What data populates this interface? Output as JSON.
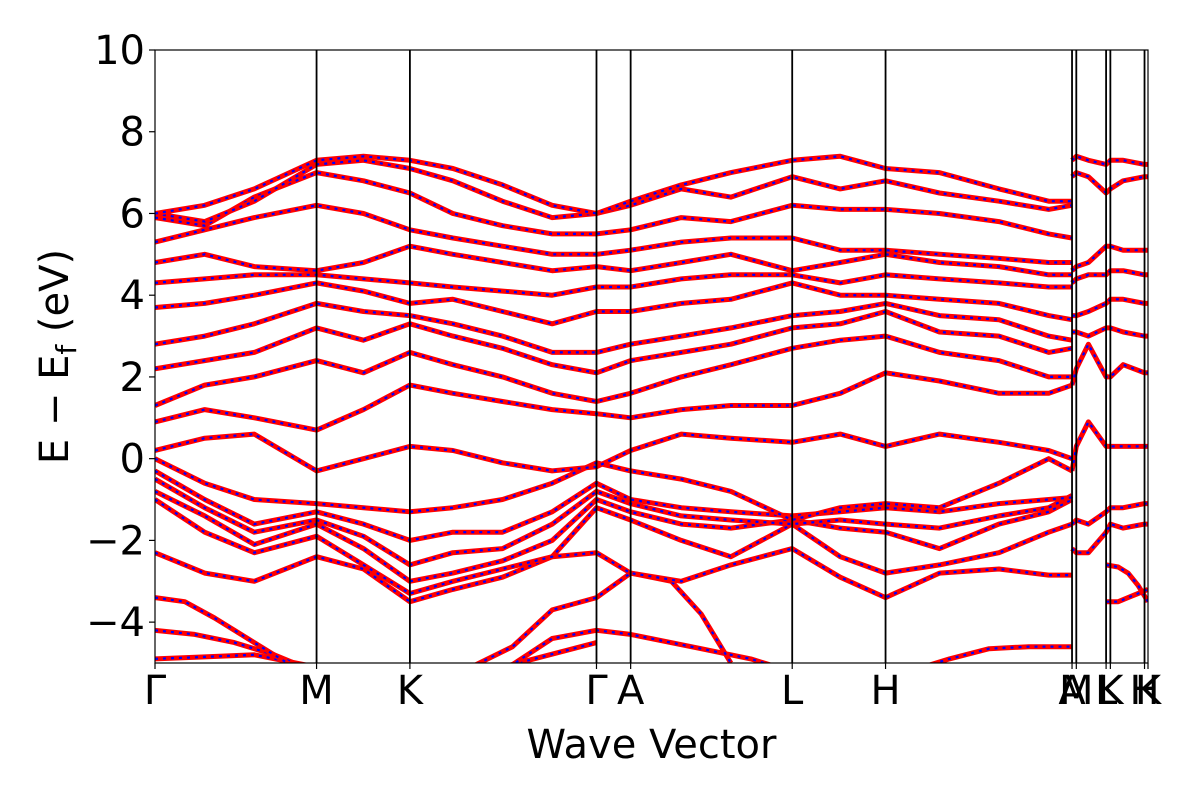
{
  "chart_data": {
    "type": "line",
    "title": "",
    "xlabel": "Wave Vector",
    "ylabel_main": "E − E",
    "ylabel_sub": "f",
    "ylabel_tail": " (eV)",
    "ylim": [
      -5,
      10
    ],
    "yticks": [
      -4,
      -2,
      0,
      2,
      4,
      6,
      8,
      10
    ],
    "ytick_labels": [
      "−4",
      "−2",
      "0",
      "2",
      "4",
      "6",
      "8",
      "10"
    ],
    "kpoints": [
      {
        "label": "Γ",
        "k": 0.0
      },
      {
        "label": "M",
        "k": 0.1627
      },
      {
        "label": "K",
        "k": 0.2567
      },
      {
        "label": "Γ",
        "k": 0.4446
      },
      {
        "label": "A",
        "k": 0.479
      },
      {
        "label": "L",
        "k": 0.6417
      },
      {
        "label": "H",
        "k": 0.7357
      },
      {
        "label": "A",
        "k": 0.9235
      },
      {
        "label": "M",
        "k": 0.9278
      },
      {
        "label": "L",
        "k": 0.9578
      },
      {
        "label": "K",
        "k": 0.9621
      },
      {
        "label": "H",
        "k": 0.9965
      },
      {
        "label": "K",
        "k": 1.0
      }
    ],
    "xlim": [
      0,
      1
    ],
    "colors": {
      "band_red": "#ff0000",
      "band_blue": "#0000ff",
      "axis": "#000000"
    },
    "band_style": "two overlaid series: solid red and dashed blue on identical paths",
    "series": [
      {
        "name": "",
        "color": "#ff0000",
        "style": "solid"
      },
      {
        "name": "",
        "color": "#0000ff",
        "style": "dashed"
      }
    ],
    "bands": [
      {
        "x": [
          0,
          0.05,
          0.1,
          0.1627,
          0.21,
          0.2567,
          0.3,
          0.35,
          0.4446
        ],
        "y": [
          -4.9,
          -4.85,
          -4.8,
          -5.1,
          -5.3,
          -5.4,
          -5.3,
          -5.1,
          -4.5
        ]
      },
      {
        "x": [
          0,
          0.04,
          0.08,
          0.12,
          0.16
        ],
        "y": [
          -4.2,
          -4.3,
          -4.5,
          -4.8,
          -5.2
        ]
      },
      {
        "x": [
          0,
          0.03,
          0.06,
          0.1,
          0.14
        ],
        "y": [
          -3.4,
          -3.5,
          -3.9,
          -4.5,
          -5.1
        ]
      },
      {
        "x": [
          0.35,
          0.4,
          0.4446,
          0.479,
          0.55,
          0.6,
          0.64
        ],
        "y": [
          -5.2,
          -4.4,
          -4.2,
          -4.3,
          -4.65,
          -4.9,
          -5.2
        ]
      },
      {
        "x": [
          0.31,
          0.36,
          0.4,
          0.4446,
          0.479,
          0.52,
          0.55,
          0.58
        ],
        "y": [
          -5.2,
          -4.6,
          -3.7,
          -3.4,
          -2.8,
          -3.0,
          -3.8,
          -5.0
        ]
      },
      {
        "x": [
          0.76,
          0.8,
          0.84,
          0.88,
          0.9235
        ],
        "y": [
          -5.2,
          -4.9,
          -4.65,
          -4.6,
          -4.6
        ]
      },
      {
        "x": [
          0.9578,
          0.97,
          0.98,
          0.99,
          1.0
        ],
        "y": [
          -2.6,
          -2.65,
          -2.8,
          -3.1,
          -3.5
        ]
      },
      {
        "x": [
          0.9578,
          0.97,
          0.98,
          0.99,
          1.0
        ],
        "y": [
          -3.5,
          -3.5,
          -3.4,
          -3.3,
          -3.2
        ]
      },
      {
        "x": [
          0,
          0.05,
          0.1,
          0.1627,
          0.21,
          0.2567,
          0.3,
          0.35,
          0.4,
          0.4446,
          0.479,
          0.53,
          0.58,
          0.6417,
          0.69,
          0.7357,
          0.79,
          0.85,
          0.9,
          0.9235
        ],
        "y": [
          -2.3,
          -2.8,
          -3.0,
          -2.4,
          -2.7,
          -3.5,
          -3.2,
          -2.9,
          -2.4,
          -2.3,
          -2.8,
          -3.0,
          -2.6,
          -2.2,
          -2.9,
          -3.4,
          -2.8,
          -2.7,
          -2.85,
          -2.85
        ]
      },
      {
        "x": [
          0,
          0.05,
          0.1,
          0.1627,
          0.21,
          0.2567,
          0.3,
          0.35,
          0.4,
          0.4446,
          0.479,
          0.53,
          0.58,
          0.6417,
          0.69,
          0.7357,
          0.79,
          0.85,
          0.9,
          0.9235
        ],
        "y": [
          -1.0,
          -1.8,
          -2.3,
          -1.9,
          -2.6,
          -3.3,
          -3.0,
          -2.7,
          -2.4,
          -1.2,
          -1.5,
          -2.0,
          -2.4,
          -1.6,
          -2.4,
          -2.8,
          -2.6,
          -2.3,
          -1.8,
          -1.6
        ]
      },
      {
        "x": [
          0,
          0.05,
          0.1,
          0.1627,
          0.21,
          0.2567,
          0.3,
          0.35,
          0.4,
          0.4446,
          0.479,
          0.53,
          0.58,
          0.6417,
          0.69,
          0.7357,
          0.79,
          0.85,
          0.9,
          0.9235
        ],
        "y": [
          -0.8,
          -1.4,
          -2.1,
          -1.6,
          -2.2,
          -3.0,
          -2.8,
          -2.5,
          -2.0,
          -1.0,
          -1.3,
          -1.6,
          -1.7,
          -1.5,
          -1.7,
          -1.8,
          -2.2,
          -1.6,
          -1.3,
          -1.0
        ]
      },
      {
        "x": [
          0,
          0.05,
          0.1,
          0.1627,
          0.21,
          0.2567,
          0.3,
          0.35,
          0.4,
          0.4446,
          0.479,
          0.53,
          0.58,
          0.6417,
          0.69,
          0.7357,
          0.79,
          0.85,
          0.9,
          0.9235
        ],
        "y": [
          -0.5,
          -1.2,
          -1.8,
          -1.5,
          -1.9,
          -2.6,
          -2.3,
          -2.2,
          -1.6,
          -0.8,
          -1.1,
          -1.4,
          -1.5,
          -1.6,
          -1.5,
          -1.6,
          -1.7,
          -1.4,
          -1.2,
          -0.9
        ]
      },
      {
        "x": [
          0,
          0.05,
          0.1,
          0.1627,
          0.21,
          0.2567,
          0.3,
          0.35,
          0.4,
          0.4446,
          0.479,
          0.53,
          0.58,
          0.6417,
          0.69,
          0.7357,
          0.79,
          0.85,
          0.9,
          0.9235
        ],
        "y": [
          -0.3,
          -1.0,
          -1.6,
          -1.3,
          -1.6,
          -2.0,
          -1.8,
          -1.8,
          -1.3,
          -0.6,
          -1.0,
          -1.2,
          -1.3,
          -1.4,
          -1.3,
          -1.2,
          -1.3,
          -1.1,
          -1.0,
          -0.95
        ]
      },
      {
        "x": [
          0,
          0.05,
          0.1,
          0.1627,
          0.21,
          0.2567,
          0.3,
          0.35,
          0.4,
          0.4446,
          0.479,
          0.53,
          0.58,
          0.6417,
          0.69,
          0.7357,
          0.79,
          0.85,
          0.9,
          0.9235
        ],
        "y": [
          0.0,
          -0.6,
          -1.0,
          -1.1,
          -1.2,
          -1.3,
          -1.2,
          -1.0,
          -0.6,
          -0.1,
          -0.3,
          -0.5,
          -0.8,
          -1.5,
          -1.2,
          -1.1,
          -1.2,
          -0.6,
          0.0,
          -0.3
        ]
      },
      {
        "x": [
          0,
          0.05,
          0.1,
          0.1627,
          0.21,
          0.2567,
          0.3,
          0.35,
          0.4,
          0.4446,
          0.479,
          0.53,
          0.58,
          0.6417,
          0.69,
          0.7357,
          0.79,
          0.85,
          0.9,
          0.9235
        ],
        "y": [
          0.2,
          0.5,
          0.6,
          -0.3,
          0.0,
          0.3,
          0.2,
          -0.1,
          -0.3,
          -0.2,
          0.2,
          0.6,
          0.5,
          0.4,
          0.6,
          0.3,
          0.6,
          0.4,
          0.2,
          0.0
        ]
      },
      {
        "x": [
          0,
          0.05,
          0.1,
          0.1627,
          0.21,
          0.2567,
          0.3,
          0.35,
          0.4,
          0.4446,
          0.479,
          0.53,
          0.58,
          0.6417,
          0.69,
          0.7357,
          0.79,
          0.85,
          0.9,
          0.9235
        ],
        "y": [
          0.9,
          1.2,
          1.0,
          0.7,
          1.2,
          1.8,
          1.6,
          1.4,
          1.2,
          1.1,
          1.0,
          1.2,
          1.3,
          1.3,
          1.6,
          2.1,
          1.9,
          1.6,
          1.6,
          1.8
        ]
      },
      {
        "x": [
          0,
          0.05,
          0.1,
          0.1627,
          0.21,
          0.2567,
          0.3,
          0.35,
          0.4,
          0.4446,
          0.479,
          0.53,
          0.58,
          0.6417,
          0.69,
          0.7357,
          0.79,
          0.85,
          0.9,
          0.9235
        ],
        "y": [
          1.3,
          1.8,
          2.0,
          2.4,
          2.1,
          2.6,
          2.3,
          2.0,
          1.6,
          1.4,
          1.6,
          2.0,
          2.3,
          2.7,
          2.9,
          3.0,
          2.6,
          2.4,
          2.0,
          2.0
        ]
      },
      {
        "x": [
          0,
          0.05,
          0.1,
          0.1627,
          0.21,
          0.2567,
          0.3,
          0.35,
          0.4,
          0.4446,
          0.479,
          0.53,
          0.58,
          0.6417,
          0.69,
          0.7357,
          0.79,
          0.85,
          0.9,
          0.9235
        ],
        "y": [
          2.2,
          2.4,
          2.6,
          3.2,
          2.9,
          3.3,
          3.0,
          2.7,
          2.3,
          2.1,
          2.4,
          2.6,
          2.8,
          3.2,
          3.3,
          3.6,
          3.1,
          3.0,
          2.6,
          2.7
        ]
      },
      {
        "x": [
          0,
          0.05,
          0.1,
          0.1627,
          0.21,
          0.2567,
          0.3,
          0.35,
          0.4,
          0.4446,
          0.479,
          0.53,
          0.58,
          0.6417,
          0.69,
          0.7357,
          0.79,
          0.85,
          0.9,
          0.9235
        ],
        "y": [
          2.8,
          3.0,
          3.3,
          3.8,
          3.6,
          3.5,
          3.3,
          3.0,
          2.6,
          2.6,
          2.8,
          3.0,
          3.2,
          3.5,
          3.6,
          3.8,
          3.5,
          3.4,
          3.0,
          2.9
        ]
      },
      {
        "x": [
          0,
          0.05,
          0.1,
          0.1627,
          0.21,
          0.2567,
          0.3,
          0.35,
          0.4,
          0.4446,
          0.479,
          0.53,
          0.58,
          0.6417,
          0.69,
          0.7357,
          0.79,
          0.85,
          0.9,
          0.9235
        ],
        "y": [
          3.7,
          3.8,
          4.0,
          4.3,
          4.1,
          3.8,
          3.9,
          3.6,
          3.3,
          3.6,
          3.6,
          3.8,
          3.9,
          4.3,
          4.0,
          4.0,
          3.9,
          3.8,
          3.5,
          3.4
        ]
      },
      {
        "x": [
          0,
          0.05,
          0.1,
          0.1627,
          0.21,
          0.2567,
          0.3,
          0.35,
          0.4,
          0.4446,
          0.479,
          0.53,
          0.58,
          0.6417,
          0.69,
          0.7357,
          0.79,
          0.85,
          0.9,
          0.9235
        ],
        "y": [
          4.3,
          4.4,
          4.5,
          4.5,
          4.4,
          4.3,
          4.2,
          4.1,
          4.0,
          4.2,
          4.2,
          4.4,
          4.5,
          4.5,
          4.3,
          4.5,
          4.4,
          4.3,
          4.2,
          4.2
        ]
      },
      {
        "x": [
          0,
          0.05,
          0.1,
          0.1627,
          0.21,
          0.2567,
          0.3,
          0.35,
          0.4,
          0.4446,
          0.479,
          0.53,
          0.58,
          0.6417,
          0.69,
          0.7357,
          0.79,
          0.85,
          0.9,
          0.9235
        ],
        "y": [
          4.8,
          5.0,
          4.7,
          4.6,
          4.8,
          5.2,
          5.0,
          4.8,
          4.6,
          4.7,
          4.6,
          4.8,
          5.0,
          4.6,
          4.8,
          5.0,
          4.8,
          4.7,
          4.5,
          4.5
        ]
      },
      {
        "x": [
          0,
          0.05,
          0.1,
          0.1627,
          0.21,
          0.2567,
          0.3,
          0.35,
          0.4,
          0.4446,
          0.479,
          0.53,
          0.58,
          0.6417,
          0.69,
          0.7357,
          0.79,
          0.85,
          0.9,
          0.9235
        ],
        "y": [
          5.3,
          5.6,
          5.9,
          6.2,
          6.0,
          5.6,
          5.4,
          5.2,
          5.0,
          5.0,
          5.1,
          5.3,
          5.4,
          5.4,
          5.1,
          5.1,
          5.0,
          4.9,
          4.8,
          4.8
        ]
      },
      {
        "x": [
          0,
          0.05,
          0.1,
          0.1627,
          0.21,
          0.2567,
          0.3,
          0.35,
          0.4,
          0.4446,
          0.479,
          0.53,
          0.58,
          0.6417,
          0.69,
          0.7357,
          0.79,
          0.85,
          0.9,
          0.9235
        ],
        "y": [
          5.9,
          5.7,
          6.4,
          7.0,
          6.8,
          6.5,
          6.0,
          5.7,
          5.5,
          5.5,
          5.6,
          5.9,
          5.8,
          6.2,
          6.1,
          6.1,
          6.0,
          5.8,
          5.5,
          5.4
        ]
      },
      {
        "x": [
          0,
          0.05,
          0.1,
          0.1627,
          0.21,
          0.2567,
          0.3,
          0.35,
          0.4,
          0.4446,
          0.479,
          0.53,
          0.58,
          0.6417,
          0.69,
          0.7357,
          0.79,
          0.85,
          0.9,
          0.9235
        ],
        "y": [
          6.0,
          5.8,
          6.3,
          7.2,
          7.3,
          7.1,
          6.8,
          6.3,
          5.9,
          6.0,
          6.2,
          6.6,
          6.4,
          6.9,
          6.6,
          6.8,
          6.5,
          6.3,
          6.1,
          6.2
        ]
      },
      {
        "x": [
          0,
          0.05,
          0.1,
          0.1627,
          0.21,
          0.2567,
          0.3,
          0.35,
          0.4,
          0.4446,
          0.479,
          0.53,
          0.58,
          0.6417,
          0.69,
          0.7357,
          0.79,
          0.85,
          0.9,
          0.9235
        ],
        "y": [
          6.0,
          6.2,
          6.6,
          7.3,
          7.4,
          7.3,
          7.1,
          6.7,
          6.2,
          6.0,
          6.3,
          6.7,
          7.0,
          7.3,
          7.4,
          7.1,
          7.0,
          6.6,
          6.3,
          6.3
        ]
      },
      {
        "x": [
          0.9235,
          0.9278,
          0.94,
          0.9578,
          0.9621,
          0.975,
          0.9965,
          1.0
        ],
        "y": [
          7.3,
          7.4,
          7.3,
          7.2,
          7.3,
          7.3,
          7.2,
          7.2
        ]
      },
      {
        "x": [
          0.9235,
          0.9278,
          0.94,
          0.9578,
          0.9621,
          0.975,
          0.9965,
          1.0
        ],
        "y": [
          6.9,
          7.0,
          6.9,
          6.5,
          6.6,
          6.8,
          6.9,
          6.9
        ]
      },
      {
        "x": [
          0.9235,
          0.9278,
          0.94,
          0.9578,
          0.9621,
          0.975,
          0.9965,
          1.0
        ],
        "y": [
          4.6,
          4.7,
          4.8,
          5.2,
          5.2,
          5.1,
          5.1,
          5.1
        ]
      },
      {
        "x": [
          0.9235,
          0.9278,
          0.94,
          0.9578,
          0.9621,
          0.975,
          0.9965,
          1.0
        ],
        "y": [
          4.3,
          4.4,
          4.5,
          4.5,
          4.6,
          4.6,
          4.5,
          4.5
        ]
      },
      {
        "x": [
          0.9235,
          0.9278,
          0.94,
          0.9578,
          0.9621,
          0.975,
          0.9965,
          1.0
        ],
        "y": [
          3.5,
          3.5,
          3.6,
          3.8,
          3.9,
          3.9,
          3.8,
          3.8
        ]
      },
      {
        "x": [
          0.9235,
          0.9278,
          0.94,
          0.9578,
          0.9621,
          0.975,
          0.9965,
          1.0
        ],
        "y": [
          3.1,
          3.1,
          3.0,
          3.2,
          3.2,
          3.1,
          3.0,
          3.0
        ]
      },
      {
        "x": [
          0.9235,
          0.9278,
          0.94,
          0.9578,
          0.9621,
          0.975,
          0.9965,
          1.0
        ],
        "y": [
          1.8,
          2.2,
          2.8,
          2.0,
          2.0,
          2.3,
          2.1,
          2.1
        ]
      },
      {
        "x": [
          0.9235,
          0.9278,
          0.94,
          0.9578,
          0.9621,
          0.975,
          0.9965,
          1.0
        ],
        "y": [
          -0.3,
          0.3,
          0.9,
          0.3,
          0.3,
          0.3,
          0.3,
          0.3
        ]
      },
      {
        "x": [
          0.9235,
          0.9278,
          0.94,
          0.9578,
          0.9621,
          0.975,
          0.9965,
          1.0
        ],
        "y": [
          -1.6,
          -1.5,
          -1.6,
          -1.3,
          -1.2,
          -1.2,
          -1.1,
          -1.1
        ]
      },
      {
        "x": [
          0.9235,
          0.9278,
          0.94,
          0.9578,
          0.9621,
          0.975,
          0.9965,
          1.0
        ],
        "y": [
          -2.2,
          -2.3,
          -2.3,
          -1.8,
          -1.6,
          -1.7,
          -1.6,
          -1.6
        ]
      }
    ]
  }
}
